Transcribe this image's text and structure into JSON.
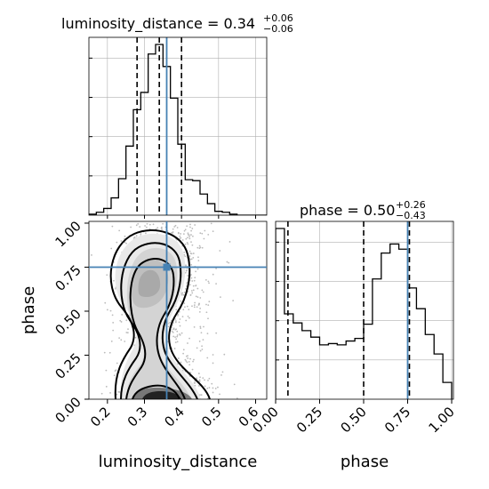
{
  "chart_data": {
    "type": "corner",
    "parameters": [
      "luminosity_distance",
      "phase"
    ],
    "truths": {
      "luminosity_distance": 0.36,
      "phase": 0.75
    },
    "ranges": {
      "luminosity_distance": [
        0.15,
        0.63
      ],
      "phase": [
        0.0,
        1.01
      ]
    },
    "colors": {
      "truth": "#4682b4",
      "hist": "#000000",
      "grid": "#b0b0b0"
    },
    "panels": [
      {
        "id": "luminosity_distance-1d",
        "type": "histogram",
        "title": {
          "text": "luminosity_distance = 0.34",
          "sup": "+0.06",
          "sub": "−0.06"
        },
        "median": 0.34,
        "q16": 0.28,
        "q84": 0.4,
        "grid": true,
        "bin_edges": [
          0.15,
          0.17,
          0.19,
          0.21,
          0.23,
          0.25,
          0.27,
          0.29,
          0.31,
          0.33,
          0.35,
          0.37,
          0.39,
          0.41,
          0.43,
          0.45,
          0.47,
          0.49,
          0.51,
          0.53,
          0.55,
          0.57,
          0.59,
          0.61,
          0.63
        ],
        "counts": [
          1,
          3,
          7,
          18,
          38,
          72,
          110,
          128,
          168,
          178,
          155,
          122,
          74,
          37,
          36,
          22,
          12,
          4,
          3,
          1,
          0,
          0,
          0,
          0
        ]
      },
      {
        "id": "phase-1d",
        "type": "histogram",
        "title": {
          "text": "phase = 0.50",
          "sup": "+0.26",
          "sub": "−0.43"
        },
        "median": 0.5,
        "q16": 0.07,
        "q84": 0.76,
        "grid": true,
        "bin_edges": [
          0.0,
          0.05,
          0.1,
          0.15,
          0.2,
          0.25,
          0.3,
          0.35,
          0.4,
          0.45,
          0.5,
          0.55,
          0.6,
          0.65,
          0.7,
          0.75,
          0.8,
          0.85,
          0.9,
          0.95,
          1.0
        ],
        "counts": [
          132,
          66,
          59,
          53,
          48,
          42,
          43,
          42,
          45,
          47,
          58,
          93,
          113,
          120,
          116,
          86,
          70,
          50,
          35,
          13
        ]
      },
      {
        "id": "joint-2d",
        "type": "contour",
        "x_param": "luminosity_distance",
        "y_param": "phase",
        "xlabel": "luminosity_distance",
        "ylabel": "phase",
        "xticks": [
          "0.2",
          "0.3",
          "0.4",
          "0.5",
          "0.6"
        ],
        "yticks": [
          "0.00",
          "0.25",
          "0.50",
          "0.75",
          "1.00"
        ],
        "xtick_values": [
          0.2,
          0.3,
          0.4,
          0.5,
          0.6
        ],
        "ytick_values": [
          0.0,
          0.25,
          0.5,
          0.75,
          1.0
        ],
        "contour_levels": [
          "0.5-sigma",
          "1-sigma",
          "1.5-sigma",
          "2-sigma"
        ]
      },
      {
        "id": "phase-axis",
        "xlabel": "phase",
        "xticks": [
          "0.00",
          "0.25",
          "0.50",
          "0.75",
          "1.00"
        ],
        "xtick_values": [
          0.0,
          0.25,
          0.5,
          0.75,
          1.0
        ]
      }
    ]
  }
}
